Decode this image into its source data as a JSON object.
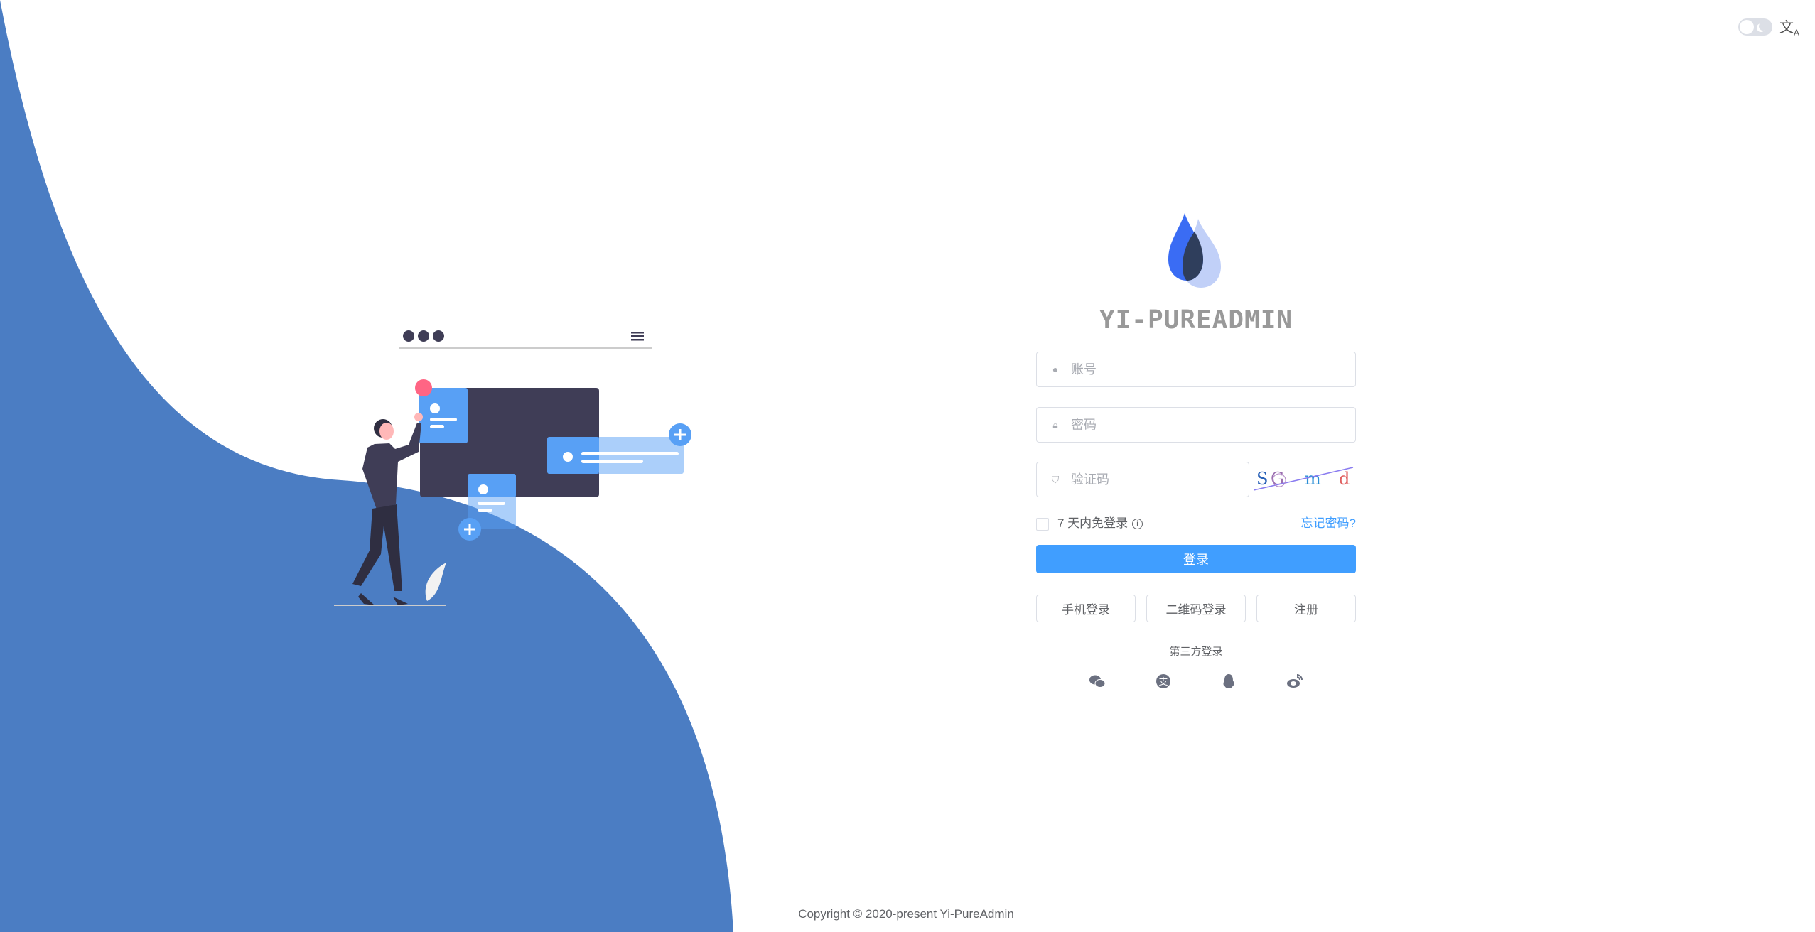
{
  "header": {
    "theme_toggle": "dark-mode-switch",
    "language_icon": "translate-icon"
  },
  "brand": {
    "title": "YI-PUREADMIN"
  },
  "form": {
    "username_placeholder": "账号",
    "password_placeholder": "密码",
    "captcha_placeholder": "验证码",
    "captcha_text": [
      "S",
      "G",
      "m",
      "d"
    ],
    "remember_label": "7 天内免登录",
    "forgot_label": "忘记密码?",
    "login_label": "登录",
    "phone_login_label": "手机登录",
    "qr_login_label": "二维码登录",
    "register_label": "注册",
    "third_party_label": "第三方登录",
    "social_icons": [
      "wechat-icon",
      "alipay-icon",
      "qq-icon",
      "weibo-icon"
    ]
  },
  "footer": {
    "copyright": "Copyright © 2020-present Yi-PureAdmin"
  },
  "colors": {
    "primary": "#409eff",
    "wave": "#4b7dc3",
    "dark": "#3f3d56"
  }
}
